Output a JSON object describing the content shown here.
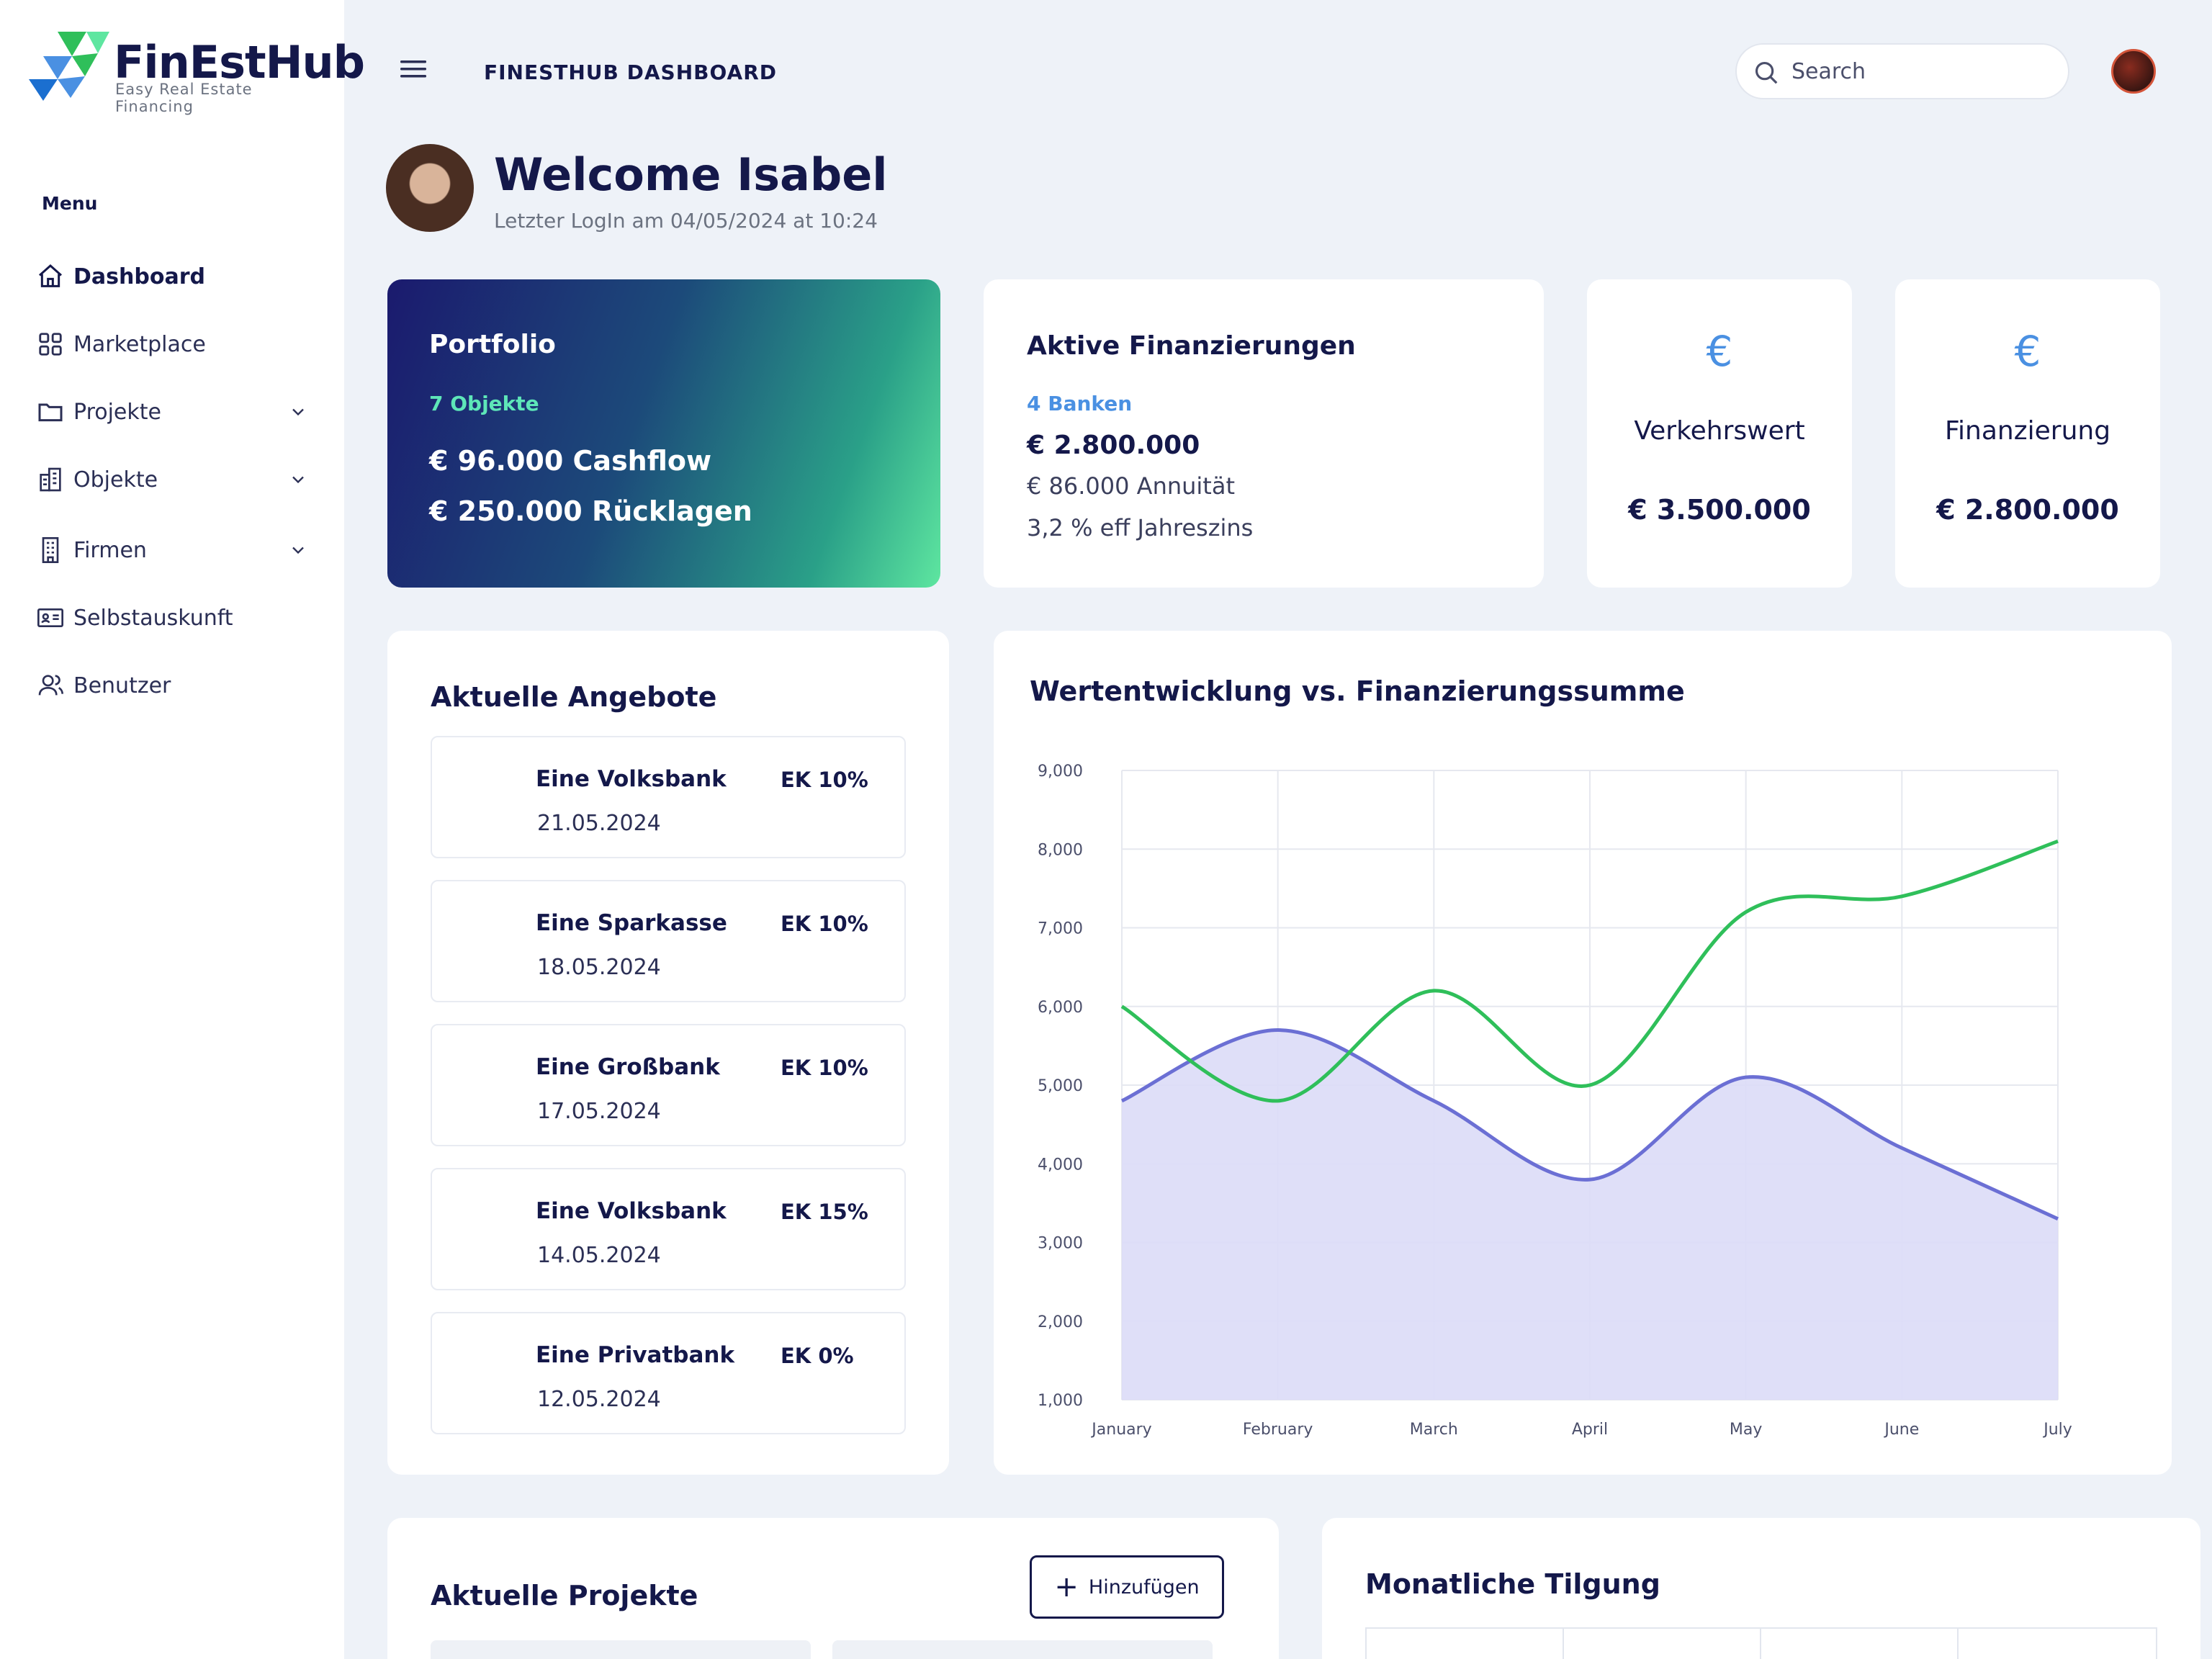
{
  "brand": {
    "name": "FinEstHub",
    "tagline": "Easy Real Estate Financing"
  },
  "sidebar": {
    "menu_label": "Menu",
    "items": [
      {
        "label": "Dashboard",
        "icon": "home-icon",
        "active": true
      },
      {
        "label": "Marketplace",
        "icon": "grid-icon"
      },
      {
        "label": "Projekte",
        "icon": "folder-icon",
        "expandable": true
      },
      {
        "label": "Objekte",
        "icon": "building-icon",
        "expandable": true
      },
      {
        "label": "Firmen",
        "icon": "office-icon",
        "expandable": true
      },
      {
        "label": "Selbstauskunft",
        "icon": "id-card-icon"
      },
      {
        "label": "Benutzer",
        "icon": "users-icon"
      }
    ]
  },
  "header": {
    "title": "FINESTHUB DASHBOARD",
    "search_placeholder": "Search"
  },
  "welcome": {
    "title": "Welcome Isabel",
    "subtitle": "Letzter LogIn am 04/05/2024 at 10:24"
  },
  "portfolio": {
    "title": "Portfolio",
    "subtitle": "7 Objekte",
    "line1": "€ 96.000 Cashflow",
    "line2": "€ 250.000 Rücklagen"
  },
  "aktive": {
    "title": "Aktive Finanzierungen",
    "subtitle": "4 Banken",
    "value": "€ 2.800.000",
    "line1": "€ 86.000 Annuität",
    "line2": "3,2 % eff Jahreszins"
  },
  "stats": [
    {
      "icon": "euro-icon",
      "symbol": "€",
      "title": "Verkehrswert",
      "value": "€ 3.500.000"
    },
    {
      "icon": "euro-icon",
      "symbol": "€",
      "title": "Finanzierung",
      "value": "€ 2.800.000"
    }
  ],
  "angebote": {
    "title": "Aktuelle Angebote",
    "items": [
      {
        "name": "Eine Volksbank",
        "ek": "EK 10%",
        "date": "21.05.2024"
      },
      {
        "name": "Eine Sparkasse",
        "ek": "EK 10%",
        "date": "18.05.2024"
      },
      {
        "name": "Eine Großbank",
        "ek": "EK 10%",
        "date": "17.05.2024"
      },
      {
        "name": "Eine Volksbank",
        "ek": "EK 15%",
        "date": "14.05.2024"
      },
      {
        "name": "Eine Privatbank",
        "ek": "EK 0%",
        "date": "12.05.2024"
      }
    ]
  },
  "chart_data": {
    "type": "line",
    "title": "Wertentwicklung vs. Finanzierungssumme",
    "categories": [
      "January",
      "February",
      "March",
      "April",
      "May",
      "June",
      "July"
    ],
    "y_ticks": [
      "1,000",
      "2,000",
      "3,000",
      "4,000",
      "5,000",
      "6,000",
      "7,000",
      "8,000",
      "9,000"
    ],
    "ylim": [
      1000,
      9000
    ],
    "grid": true,
    "series": [
      {
        "style": "area",
        "color": "#6b6fd4",
        "fill": "#dcdcf7",
        "values": [
          4800,
          5700,
          4800,
          3800,
          5100,
          4200,
          3300
        ]
      },
      {
        "style": "line",
        "color": "#2fbf5a",
        "values": [
          6000,
          4800,
          6200,
          5000,
          7200,
          7400,
          8100
        ]
      }
    ]
  },
  "projekte": {
    "title": "Aktuelle Projekte",
    "add_label": "Hinzufügen"
  },
  "tilgung": {
    "title": "Monatliche Tilgung"
  },
  "colors": {
    "accent": "#4a90e2",
    "navy": "#14184a",
    "green": "#2fbf5a",
    "purple": "#6b6fd4"
  }
}
